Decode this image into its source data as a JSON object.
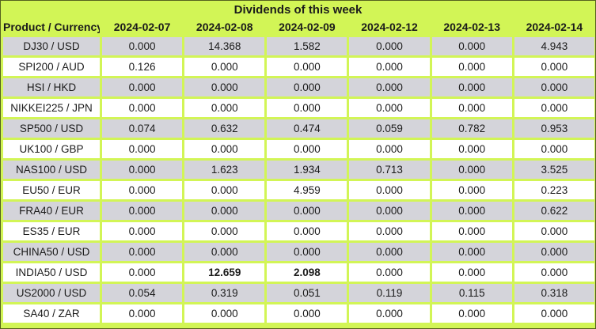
{
  "title": "Dividends of this week",
  "colors": {
    "background_lime": "#d2f556",
    "row_gray": "#d4d4da",
    "row_white": "#ffffff",
    "text": "#1b1b1b"
  },
  "table": {
    "columns": [
      "Product / Currency",
      "2024-02-07",
      "2024-02-08",
      "2024-02-09",
      "2024-02-12",
      "2024-02-13",
      "2024-02-14"
    ],
    "rows": [
      {
        "product": "DJ30 / USD",
        "values": [
          "0.000",
          "14.368",
          "1.582",
          "0.000",
          "0.000",
          "4.943"
        ],
        "bold": []
      },
      {
        "product": "SPI200 / AUD",
        "values": [
          "0.126",
          "0.000",
          "0.000",
          "0.000",
          "0.000",
          "0.000"
        ],
        "bold": []
      },
      {
        "product": "HSI / HKD",
        "values": [
          "0.000",
          "0.000",
          "0.000",
          "0.000",
          "0.000",
          "0.000"
        ],
        "bold": []
      },
      {
        "product": "NIKKEI225 / JPN",
        "values": [
          "0.000",
          "0.000",
          "0.000",
          "0.000",
          "0.000",
          "0.000"
        ],
        "bold": []
      },
      {
        "product": "SP500 / USD",
        "values": [
          "0.074",
          "0.632",
          "0.474",
          "0.059",
          "0.782",
          "0.953"
        ],
        "bold": []
      },
      {
        "product": "UK100 / GBP",
        "values": [
          "0.000",
          "0.000",
          "0.000",
          "0.000",
          "0.000",
          "0.000"
        ],
        "bold": []
      },
      {
        "product": "NAS100 / USD",
        "values": [
          "0.000",
          "1.623",
          "1.934",
          "0.713",
          "0.000",
          "3.525"
        ],
        "bold": []
      },
      {
        "product": "EU50 / EUR",
        "values": [
          "0.000",
          "0.000",
          "4.959",
          "0.000",
          "0.000",
          "0.223"
        ],
        "bold": []
      },
      {
        "product": "FRA40 / EUR",
        "values": [
          "0.000",
          "0.000",
          "0.000",
          "0.000",
          "0.000",
          "0.622"
        ],
        "bold": []
      },
      {
        "product": "ES35 / EUR",
        "values": [
          "0.000",
          "0.000",
          "0.000",
          "0.000",
          "0.000",
          "0.000"
        ],
        "bold": []
      },
      {
        "product": "CHINA50 / USD",
        "values": [
          "0.000",
          "0.000",
          "0.000",
          "0.000",
          "0.000",
          "0.000"
        ],
        "bold": []
      },
      {
        "product": "INDIA50 / USD",
        "values": [
          "0.000",
          "12.659",
          "2.098",
          "0.000",
          "0.000",
          "0.000"
        ],
        "bold": [
          1,
          2
        ]
      },
      {
        "product": "US2000 / USD",
        "values": [
          "0.054",
          "0.319",
          "0.051",
          "0.119",
          "0.115",
          "0.318"
        ],
        "bold": []
      },
      {
        "product": "SA40 / ZAR",
        "values": [
          "0.000",
          "0.000",
          "0.000",
          "0.000",
          "0.000",
          "0.000"
        ],
        "bold": []
      }
    ]
  }
}
